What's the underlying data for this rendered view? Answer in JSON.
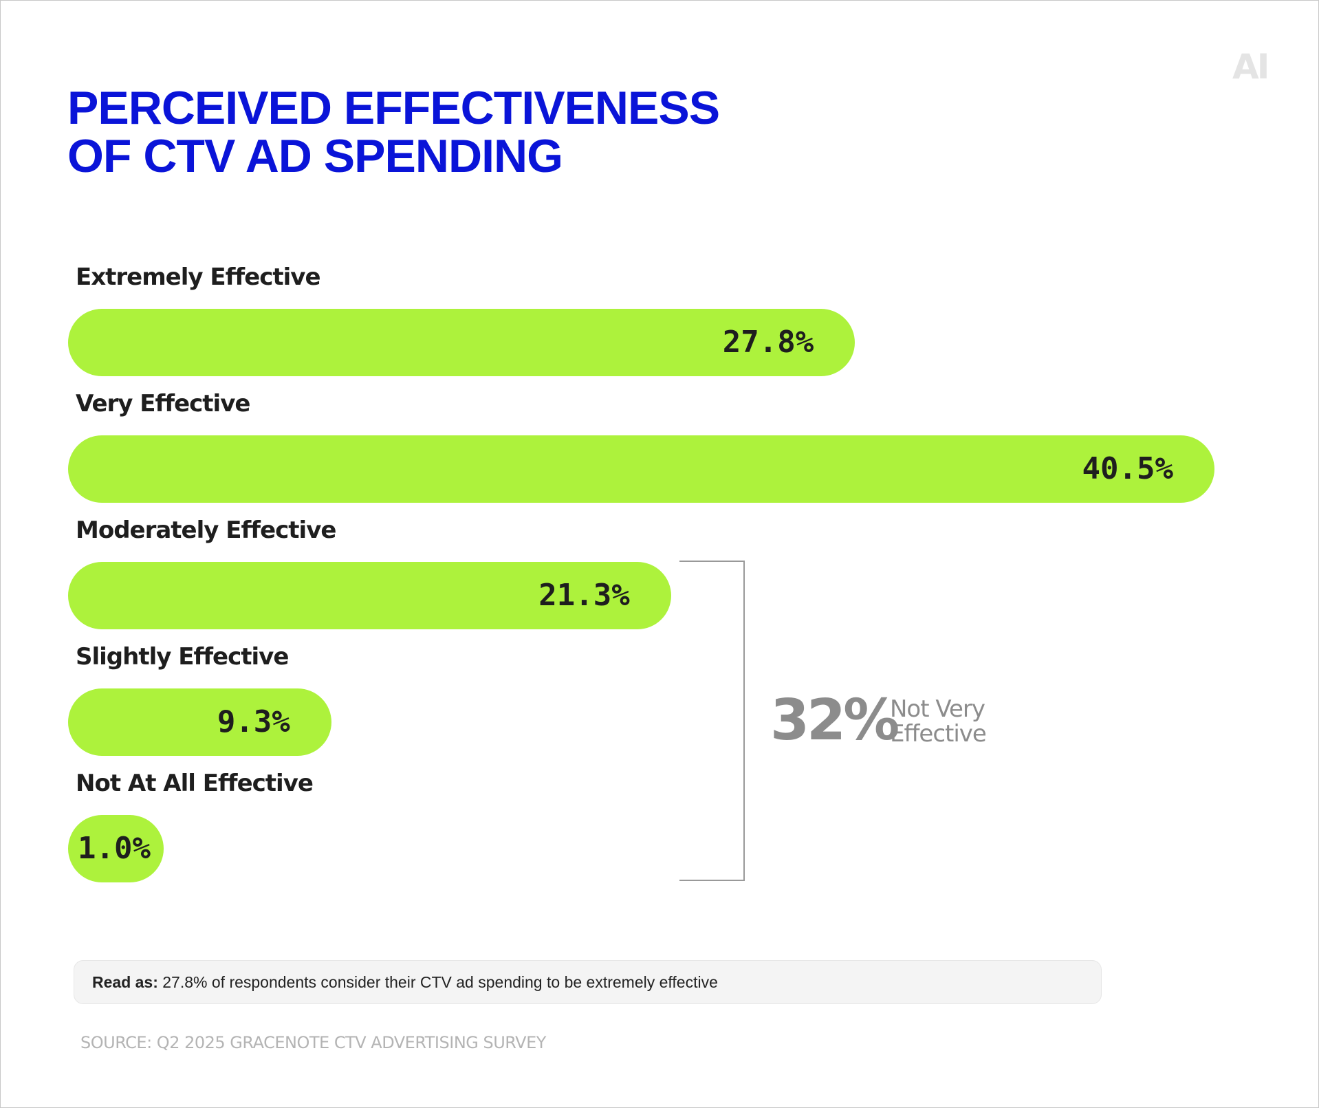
{
  "brand": {
    "logo_text": "AI"
  },
  "title_lines": [
    "PERCEIVED EFFECTIVENESS",
    "OF CTV AD SPENDING"
  ],
  "chart_data": {
    "type": "bar",
    "orientation": "horizontal",
    "title": "PERCEIVED EFFECTIVENESS OF CTV AD SPENDING",
    "categories": [
      "Extremely Effective",
      "Very Effective",
      "Moderately Effective",
      "Slightly Effective",
      "Not At All Effective"
    ],
    "values": [
      27.8,
      40.5,
      21.3,
      9.3,
      1.0
    ],
    "value_labels": [
      "27.8%",
      "40.5%",
      "21.3%",
      "9.3%",
      "1.0%"
    ],
    "unit": "%",
    "xlim": [
      0,
      40.5
    ],
    "grid": false,
    "bar_color": "#adf23c",
    "annotations": [
      {
        "value": "32%",
        "label": "Not Very Effective",
        "groups": [
          "Moderately Effective",
          "Slightly Effective",
          "Not At All Effective"
        ]
      }
    ]
  },
  "footnote": {
    "read_as_label": "Read as:",
    "read_as_text": "27.8% of respondents consider their CTV ad spending to be extremely effective"
  },
  "source": "SOURCE: Q2 2025 GRACENOTE CTV ADVERTISING SURVEY",
  "colors": {
    "title": "#0a14d8",
    "bar": "#adf23c",
    "muted": "#8c8c8c"
  }
}
